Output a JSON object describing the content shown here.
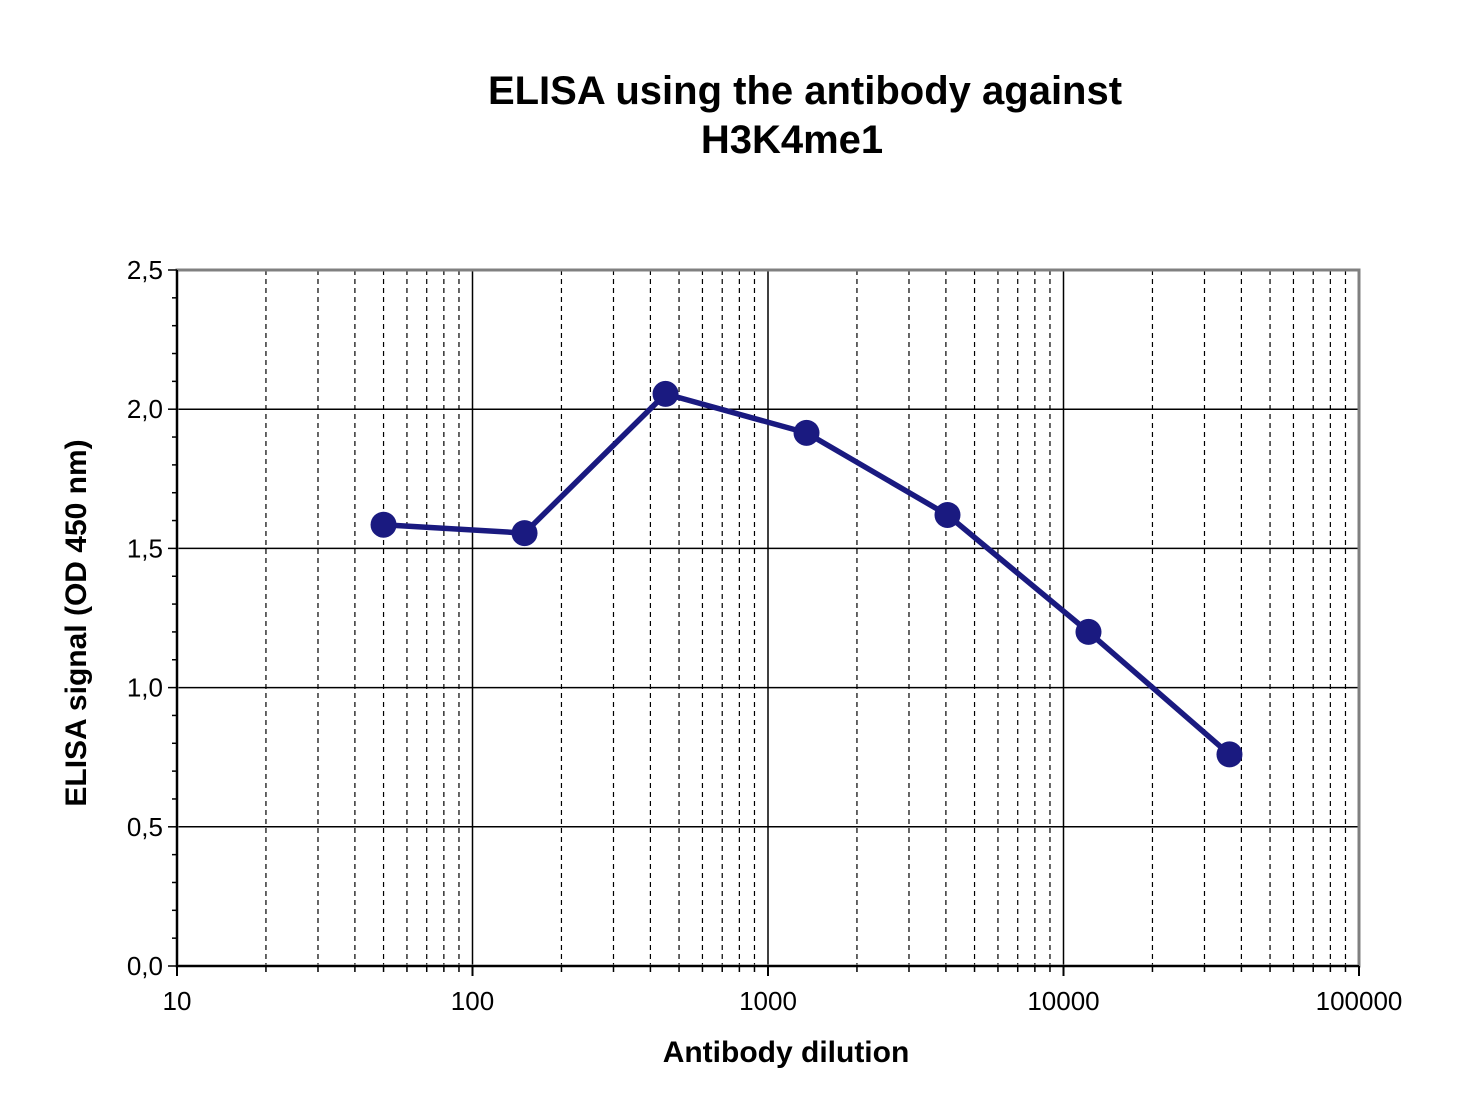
{
  "chart_data": {
    "type": "line",
    "title_lines": [
      "ELISA using the antibody against",
      "H3K4me1"
    ],
    "xlabel": "Antibody dilution",
    "ylabel": "ELISA signal (OD 450 nm)",
    "x_scale": "log",
    "xlim": [
      10,
      100000
    ],
    "ylim": [
      0,
      2.5
    ],
    "x_ticks": [
      10,
      100,
      1000,
      10000,
      100000
    ],
    "x_tick_labels": [
      "10",
      "100",
      "1000",
      "10000",
      "100000"
    ],
    "y_ticks": [
      0,
      0.5,
      1,
      1.5,
      2,
      2.5
    ],
    "y_tick_labels": [
      "0,0",
      "0,5",
      "1,0",
      "1,5",
      "2,0",
      "2,5"
    ],
    "grid": true,
    "legend": false,
    "series": [
      {
        "color": "#1a1a80",
        "x": [
          50,
          150,
          450,
          1350,
          4050,
          12150,
          36450
        ],
        "y": [
          1.585,
          1.555,
          2.055,
          1.915,
          1.62,
          1.2,
          0.76
        ]
      }
    ]
  }
}
